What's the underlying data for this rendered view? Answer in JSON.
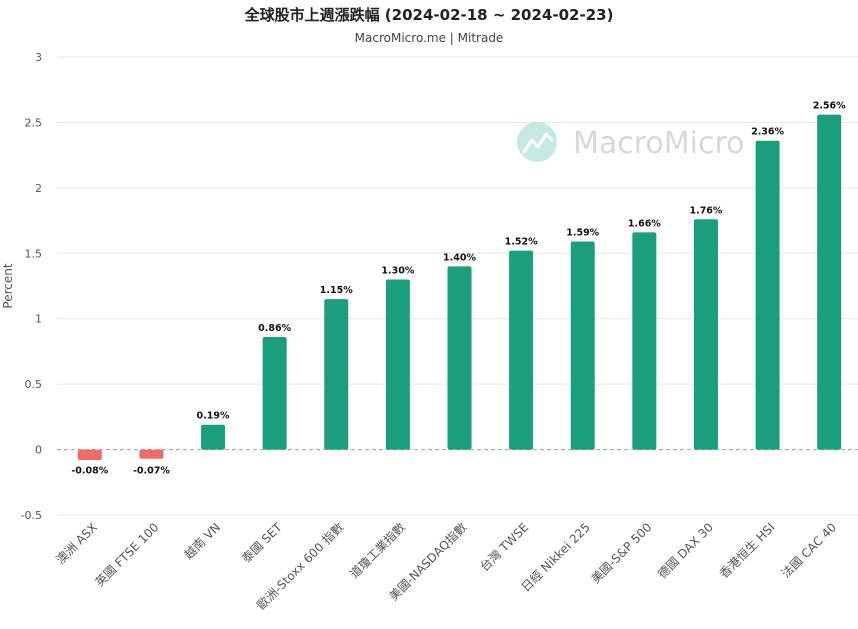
{
  "chart_data": {
    "type": "bar",
    "title": "全球股市上週漲跌幅 (2024-02-18 ~ 2024-02-23)",
    "subtitle": "MacroMicro.me | Mitrade",
    "ylabel": "Percent",
    "ylim": [
      -0.5,
      3
    ],
    "yticks": [
      "-0.5",
      "0",
      "0.5",
      "1",
      "1.5",
      "2",
      "2.5",
      "3"
    ],
    "yticks_values": [
      -0.5,
      0,
      0.5,
      1,
      1.5,
      2,
      2.5,
      3
    ],
    "grid": true,
    "legend": "none",
    "categories": [
      "澳洲 ASX",
      "英國 FTSE 100",
      "越南 VN",
      "泰國 SET",
      "歐洲-Stoxx 600 指數",
      "道瓊工業指數",
      "美國-NASDAQ指數",
      "台灣 TWSE",
      "日經 Nikkei 225",
      "美國-S&P 500",
      "德國 DAX 30",
      "香港恒生 HSI",
      "法國 CAC 40"
    ],
    "values": [
      -0.08,
      -0.07,
      0.19,
      0.86,
      1.15,
      1.3,
      1.4,
      1.52,
      1.59,
      1.66,
      1.76,
      2.36,
      2.56
    ],
    "data_labels": [
      "-0.08%",
      "-0.07%",
      "0.19%",
      "0.86%",
      "1.15%",
      "1.30%",
      "1.40%",
      "1.52%",
      "1.59%",
      "1.66%",
      "1.76%",
      "2.36%",
      "2.56%"
    ],
    "colors": {
      "positive": "#1a9e7e",
      "negative": "#f06a6a",
      "zero_line": "#9aa0a6",
      "grid": "#e6e6e6"
    }
  },
  "watermark": {
    "text": "MacroMicro",
    "logo_icon": "macromicro-logo-icon"
  }
}
